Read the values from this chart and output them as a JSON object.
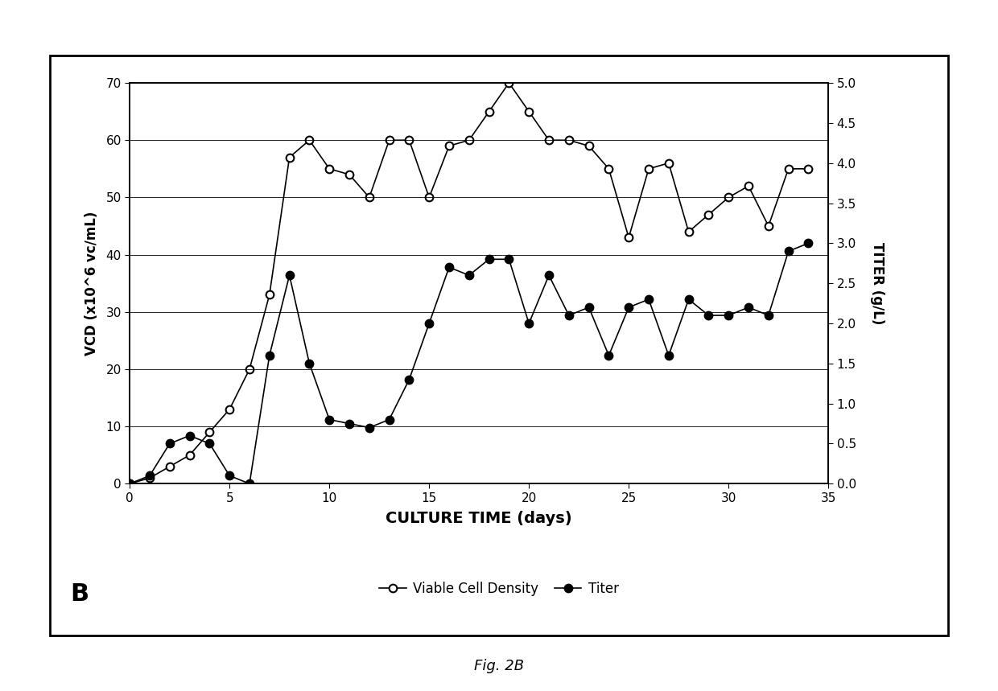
{
  "vcd_x": [
    0,
    1,
    2,
    3,
    4,
    5,
    6,
    7,
    8,
    9,
    10,
    11,
    12,
    13,
    14,
    15,
    16,
    17,
    18,
    19,
    20,
    21,
    22,
    23,
    24,
    25,
    26,
    27,
    28,
    29,
    30,
    31,
    32,
    33,
    34
  ],
  "vcd_y": [
    0,
    1,
    3,
    5,
    9,
    13,
    20,
    33,
    57,
    60,
    55,
    54,
    50,
    60,
    60,
    50,
    59,
    60,
    65,
    70,
    65,
    60,
    60,
    59,
    55,
    43,
    55,
    56,
    44,
    47,
    50,
    52,
    45,
    55,
    55
  ],
  "titer_x": [
    0,
    1,
    2,
    3,
    4,
    5,
    6,
    7,
    8,
    9,
    10,
    11,
    12,
    13,
    14,
    15,
    16,
    17,
    18,
    19,
    20,
    21,
    22,
    23,
    24,
    25,
    26,
    27,
    28,
    29,
    30,
    31,
    32,
    33,
    34
  ],
  "titer_y": [
    0,
    0.1,
    0.5,
    0.6,
    0.5,
    0.1,
    0.0,
    1.6,
    2.6,
    1.5,
    0.8,
    0.75,
    0.7,
    0.8,
    1.3,
    2.0,
    2.7,
    2.6,
    2.8,
    2.8,
    2.0,
    2.6,
    2.1,
    2.2,
    1.6,
    2.2,
    2.3,
    1.6,
    2.3,
    2.1,
    2.1,
    2.2,
    2.1,
    2.9,
    3.0
  ],
  "xlabel": "CULTURE TIME (days)",
  "ylabel_left": "VCD (x10^6 vc/mL)",
  "ylabel_right": "TITER (g/L)",
  "xlim": [
    0,
    35
  ],
  "ylim_left": [
    0,
    70
  ],
  "ylim_right": [
    0.0,
    5.0
  ],
  "xticks": [
    0,
    5,
    10,
    15,
    20,
    25,
    30,
    35
  ],
  "yticks_left": [
    0,
    10,
    20,
    30,
    40,
    50,
    60,
    70
  ],
  "yticks_right": [
    0.0,
    0.5,
    1.0,
    1.5,
    2.0,
    2.5,
    3.0,
    3.5,
    4.0,
    4.5,
    5.0
  ],
  "legend_vcd": "Viable Cell Density",
  "legend_titer": "Titer",
  "panel_label": "B",
  "fig_label": "Fig. 2B",
  "background_color": "#ffffff",
  "line_color": "#000000"
}
